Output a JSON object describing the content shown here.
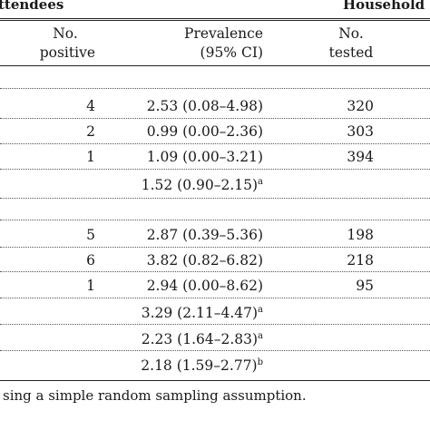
{
  "groups": {
    "attendees": "ttendees",
    "households": "Household"
  },
  "headers": {
    "no_positive_line1": "No.",
    "no_positive_line2": "positive",
    "prevalence_line1": "Prevalence",
    "prevalence_line2": "(95% CI)",
    "no_tested_line1": "No.",
    "no_tested_line2": "tested"
  },
  "rows": [
    {
      "positive": "4",
      "prevalence": "2.53 (0.08–4.98)",
      "sup": "",
      "tested": "320"
    },
    {
      "positive": "2",
      "prevalence": "0.99 (0.00–2.36)",
      "sup": "",
      "tested": "303"
    },
    {
      "positive": "1",
      "prevalence": "1.09 (0.00–3.21)",
      "sup": "",
      "tested": "394"
    },
    {
      "positive": "",
      "prevalence": "1.52 (0.90–2.15)",
      "sup": "a",
      "tested": ""
    },
    {
      "positive": "5",
      "prevalence": "2.87 (0.39–5.36)",
      "sup": "",
      "tested": "198"
    },
    {
      "positive": "6",
      "prevalence": "3.82 (0.82–6.82)",
      "sup": "",
      "tested": "218"
    },
    {
      "positive": "1",
      "prevalence": "2.94 (0.00–8.62)",
      "sup": "",
      "tested": "95"
    },
    {
      "positive": "",
      "prevalence": "3.29 (2.11–4.47)",
      "sup": "a",
      "tested": ""
    },
    {
      "positive": "",
      "prevalence": "2.23 (1.64–2.83)",
      "sup": "a",
      "tested": ""
    },
    {
      "positive": "",
      "prevalence": "2.18 (1.59–2.77)",
      "sup": "b",
      "tested": ""
    }
  ],
  "footnote": "sing a simple random sampling assumption."
}
